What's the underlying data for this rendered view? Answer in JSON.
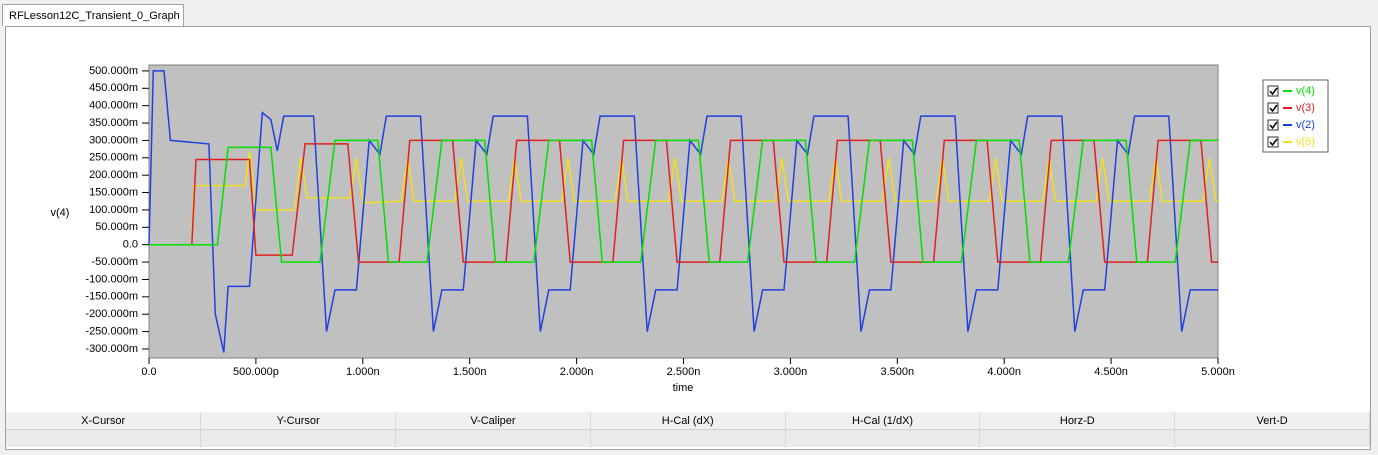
{
  "tab": {
    "title": "RFLesson12C_Transient_0_Graph"
  },
  "chart_data": {
    "type": "line",
    "ylabel": "v(4)",
    "xlabel": "time",
    "xlim": [
      0,
      5e-09
    ],
    "ylim": [
      -0.326,
      0.517
    ],
    "xticks": [
      {
        "value": 0,
        "label": "0.0"
      },
      {
        "value": 5e-10,
        "label": "500.000p"
      },
      {
        "value": 1e-09,
        "label": "1.000n"
      },
      {
        "value": 1.5e-09,
        "label": "1.500n"
      },
      {
        "value": 2e-09,
        "label": "2.000n"
      },
      {
        "value": 2.5e-09,
        "label": "2.500n"
      },
      {
        "value": 3e-09,
        "label": "3.000n"
      },
      {
        "value": 3.5e-09,
        "label": "3.500n"
      },
      {
        "value": 4e-09,
        "label": "4.000n"
      },
      {
        "value": 4.5e-09,
        "label": "4.500n"
      },
      {
        "value": 5e-09,
        "label": "5.000n"
      }
    ],
    "yticks": [
      {
        "value": 0.5,
        "label": "500.000m"
      },
      {
        "value": 0.45,
        "label": "450.000m"
      },
      {
        "value": 0.4,
        "label": "400.000m"
      },
      {
        "value": 0.35,
        "label": "350.000m"
      },
      {
        "value": 0.3,
        "label": "300.000m"
      },
      {
        "value": 0.25,
        "label": "250.000m"
      },
      {
        "value": 0.2,
        "label": "200.000m"
      },
      {
        "value": 0.15,
        "label": "150.000m"
      },
      {
        "value": 0.1,
        "label": "100.000m"
      },
      {
        "value": 0.05,
        "label": "50.000m"
      },
      {
        "value": 0,
        "label": "0.0"
      },
      {
        "value": -0.05,
        "label": "-50.000m"
      },
      {
        "value": -0.1,
        "label": "-100.000m"
      },
      {
        "value": -0.15,
        "label": "-150.000m"
      },
      {
        "value": -0.2,
        "label": "-200.000m"
      },
      {
        "value": -0.25,
        "label": "-250.000m"
      },
      {
        "value": -0.3,
        "label": "-300.000m"
      }
    ],
    "series": [
      {
        "name": "v(4)",
        "color": "#00e000",
        "x": [
          0,
          3.2e-10,
          3.7e-10,
          5.7e-10,
          6.2e-10,
          8e-10,
          8.7e-10,
          1.07e-09,
          1.12e-09,
          1.3e-09,
          1.37e-09,
          1.57e-09,
          1.62e-09,
          1.8e-09,
          1.87e-09,
          2.07e-09,
          2.12e-09,
          2.3e-09,
          2.37e-09,
          2.57e-09,
          2.62e-09,
          2.8e-09,
          2.87e-09,
          3.07e-09,
          3.12e-09,
          3.3e-09,
          3.37e-09,
          3.57e-09,
          3.62e-09,
          3.8e-09,
          3.87e-09,
          4.07e-09,
          4.12e-09,
          4.3e-09,
          4.37e-09,
          4.57e-09,
          4.62e-09,
          4.8e-09,
          4.87e-09,
          5e-09
        ],
        "values": [
          0,
          0,
          0.28,
          0.28,
          -0.05,
          -0.05,
          0.3,
          0.3,
          -0.05,
          -0.05,
          0.3,
          0.3,
          -0.05,
          -0.05,
          0.3,
          0.3,
          -0.05,
          -0.05,
          0.3,
          0.3,
          -0.05,
          -0.05,
          0.3,
          0.3,
          -0.05,
          -0.05,
          0.3,
          0.3,
          -0.05,
          -0.05,
          0.3,
          0.3,
          -0.05,
          -0.05,
          0.3,
          0.3,
          -0.05,
          -0.05,
          0.3,
          0.3
        ]
      },
      {
        "name": "v(3)",
        "color": "#e02020",
        "x": [
          0,
          2e-10,
          2.2e-10,
          4.7e-10,
          5e-10,
          6.7e-10,
          7.3e-10,
          9.3e-10,
          9.8e-10,
          1.17e-09,
          1.22e-09,
          1.42e-09,
          1.47e-09,
          1.67e-09,
          1.72e-09,
          1.92e-09,
          1.97e-09,
          2.17e-09,
          2.22e-09,
          2.42e-09,
          2.47e-09,
          2.67e-09,
          2.72e-09,
          2.92e-09,
          2.97e-09,
          3.17e-09,
          3.22e-09,
          3.42e-09,
          3.47e-09,
          3.67e-09,
          3.72e-09,
          3.92e-09,
          3.97e-09,
          4.17e-09,
          4.22e-09,
          4.42e-09,
          4.47e-09,
          4.67e-09,
          4.72e-09,
          4.92e-09,
          4.97e-09,
          5e-09
        ],
        "values": [
          0,
          0,
          0.245,
          0.245,
          -0.03,
          -0.03,
          0.29,
          0.29,
          -0.05,
          -0.05,
          0.3,
          0.3,
          -0.05,
          -0.05,
          0.3,
          0.3,
          -0.05,
          -0.05,
          0.3,
          0.3,
          -0.05,
          -0.05,
          0.3,
          0.3,
          -0.05,
          -0.05,
          0.3,
          0.3,
          -0.05,
          -0.05,
          0.3,
          0.3,
          -0.05,
          -0.05,
          0.3,
          0.3,
          -0.05,
          -0.05,
          0.3,
          0.3,
          -0.05,
          -0.05
        ]
      },
      {
        "name": "v(2)",
        "color": "#2040e0",
        "x": [
          0,
          2e-11,
          7e-11,
          1e-10,
          2.8e-10,
          3.1e-10,
          3.5e-10,
          3.7e-10,
          4.7e-10,
          5.3e-10,
          5.7e-10,
          6e-10,
          6.3e-10,
          7.7e-10,
          8.3e-10,
          8.7e-10,
          9.7e-10,
          1.03e-09,
          1.08e-09,
          1.11e-09,
          1.27e-09,
          1.33e-09,
          1.37e-09,
          1.47e-09,
          1.53e-09,
          1.58e-09,
          1.61e-09,
          1.77e-09,
          1.83e-09,
          1.87e-09,
          1.97e-09,
          2.03e-09,
          2.08e-09,
          2.11e-09,
          2.27e-09,
          2.33e-09,
          2.37e-09,
          2.47e-09,
          2.53e-09,
          2.58e-09,
          2.61e-09,
          2.77e-09,
          2.83e-09,
          2.87e-09,
          2.97e-09,
          3.03e-09,
          3.08e-09,
          3.11e-09,
          3.27e-09,
          3.33e-09,
          3.37e-09,
          3.47e-09,
          3.53e-09,
          3.58e-09,
          3.61e-09,
          3.77e-09,
          3.83e-09,
          3.87e-09,
          3.97e-09,
          4.03e-09,
          4.08e-09,
          4.11e-09,
          4.27e-09,
          4.33e-09,
          4.37e-09,
          4.47e-09,
          4.53e-09,
          4.58e-09,
          4.61e-09,
          4.77e-09,
          4.83e-09,
          4.87e-09,
          5e-09
        ],
        "values": [
          0,
          0.5,
          0.5,
          0.3,
          0.29,
          -0.2,
          -0.31,
          -0.12,
          -0.12,
          0.38,
          0.36,
          0.27,
          0.37,
          0.37,
          -0.25,
          -0.13,
          -0.13,
          0.3,
          0.26,
          0.37,
          0.37,
          -0.25,
          -0.13,
          -0.13,
          0.3,
          0.26,
          0.37,
          0.37,
          -0.25,
          -0.13,
          -0.13,
          0.3,
          0.26,
          0.37,
          0.37,
          -0.25,
          -0.13,
          -0.13,
          0.3,
          0.26,
          0.37,
          0.37,
          -0.25,
          -0.13,
          -0.13,
          0.3,
          0.26,
          0.37,
          0.37,
          -0.25,
          -0.13,
          -0.13,
          0.3,
          0.26,
          0.37,
          0.37,
          -0.25,
          -0.13,
          -0.13,
          0.3,
          0.26,
          0.37,
          0.37,
          -0.25,
          -0.13,
          -0.13,
          0.3,
          0.26,
          0.37,
          0.37,
          -0.25,
          -0.13,
          -0.13
        ]
      },
      {
        "name": "v(5)",
        "color": "#f0e020",
        "x": [
          0,
          2e-10,
          2.1e-10,
          4.5e-10,
          4.7e-10,
          5e-10,
          6.8e-10,
          7.1e-10,
          7.4e-10,
          9.4e-10,
          9.7e-10,
          1e-09,
          1.18e-09,
          1.21e-09,
          1.24e-09,
          1.43e-09,
          1.46e-09,
          1.49e-09,
          1.68e-09,
          1.71e-09,
          1.74e-09,
          1.93e-09,
          1.96e-09,
          1.99e-09,
          2.18e-09,
          2.21e-09,
          2.24e-09,
          2.43e-09,
          2.46e-09,
          2.49e-09,
          2.68e-09,
          2.71e-09,
          2.74e-09,
          2.93e-09,
          2.96e-09,
          2.99e-09,
          3.18e-09,
          3.21e-09,
          3.24e-09,
          3.43e-09,
          3.46e-09,
          3.49e-09,
          3.68e-09,
          3.71e-09,
          3.74e-09,
          3.93e-09,
          3.96e-09,
          3.99e-09,
          4.18e-09,
          4.21e-09,
          4.24e-09,
          4.43e-09,
          4.46e-09,
          4.49e-09,
          4.68e-09,
          4.71e-09,
          4.74e-09,
          4.93e-09,
          4.96e-09,
          4.99e-09,
          5e-09
        ],
        "values": [
          0,
          0,
          0.17,
          0.17,
          0.27,
          0.1,
          0.1,
          0.25,
          0.135,
          0.135,
          0.25,
          0.12,
          0.125,
          0.25,
          0.125,
          0.125,
          0.25,
          0.125,
          0.125,
          0.25,
          0.125,
          0.125,
          0.25,
          0.125,
          0.125,
          0.25,
          0.125,
          0.125,
          0.25,
          0.125,
          0.125,
          0.25,
          0.125,
          0.125,
          0.25,
          0.125,
          0.125,
          0.25,
          0.125,
          0.125,
          0.25,
          0.125,
          0.125,
          0.25,
          0.125,
          0.125,
          0.25,
          0.125,
          0.125,
          0.25,
          0.125,
          0.125,
          0.25,
          0.125,
          0.125,
          0.25,
          0.125,
          0.125,
          0.25,
          0.125,
          0.125
        ]
      }
    ]
  },
  "cursor_table": {
    "headers": [
      "X-Cursor",
      "Y-Cursor",
      "V-Caliper",
      "H-Cal (dX)",
      "H-Cal (1/dX)",
      "Horz-D",
      "Vert-D"
    ]
  }
}
